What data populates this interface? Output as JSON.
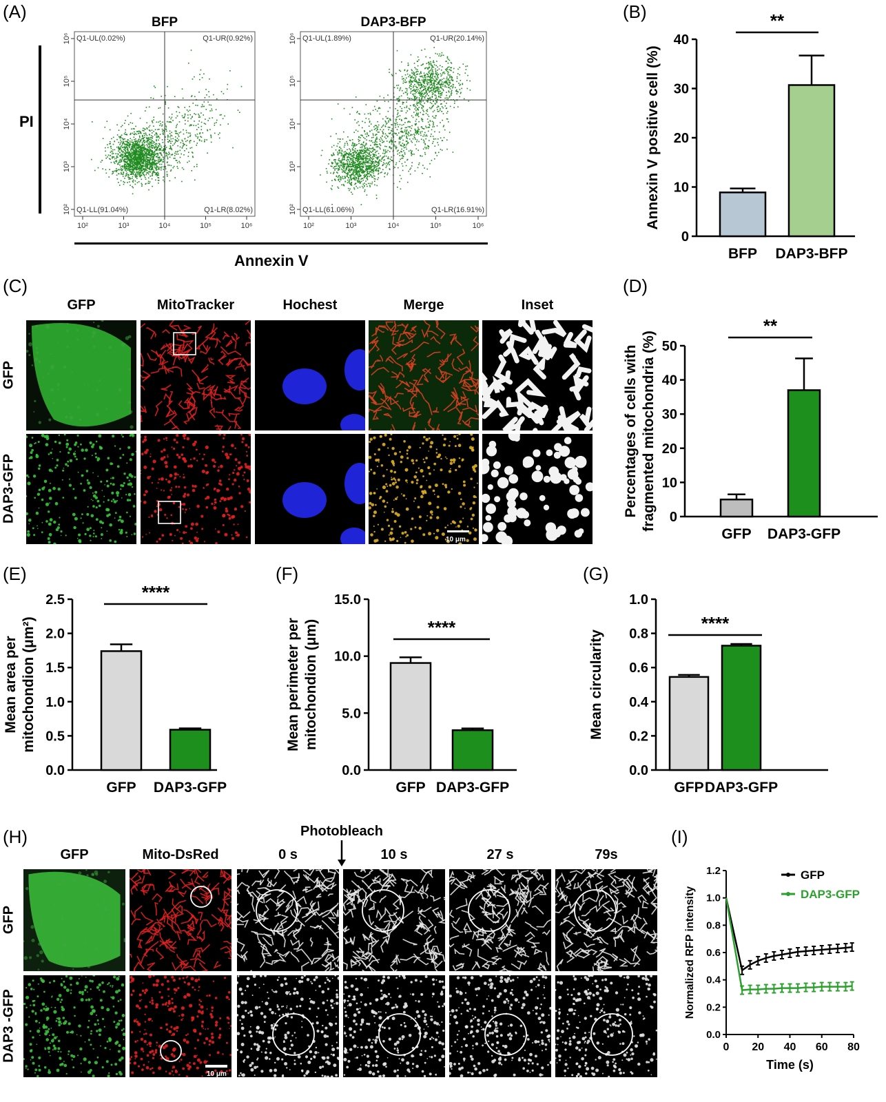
{
  "panel_labels": {
    "A": "(A)",
    "B": "(B)",
    "C": "(C)",
    "D": "(D)",
    "E": "(E)",
    "F": "(F)",
    "G": "(G)",
    "H": "(H)",
    "I": "(I)"
  },
  "flow": {
    "plots": [
      {
        "title": "BFP",
        "ul": "Q1-UL(0.02%)",
        "ur": "Q1-UR(0.92%)",
        "ll": "Q1-LL(91.04%)",
        "lr": "Q1-LR(8.02%)"
      },
      {
        "title": "DAP3-BFP",
        "ul": "Q1-UL(1.89%)",
        "ur": "Q1-UR(20.14%)",
        "ll": "Q1-LL(61.06%)",
        "lr": "Q1-LR(16.91%)"
      }
    ],
    "xlabel": "Annexin V",
    "ylabel": "PI",
    "xticks": [
      "10²",
      "10³",
      "10⁴",
      "10⁵",
      "10⁶"
    ],
    "yticks": [
      "10²",
      "10³",
      "10⁴",
      "10⁵",
      "10⁶"
    ],
    "dot_color": "#1e8a1e"
  },
  "panel_c": {
    "columns": [
      "GFP",
      "MitoTracker",
      "Hochest",
      "Merge",
      "Inset"
    ],
    "rows": [
      "GFP",
      "DAP3-GFP"
    ],
    "scale": "10 μm"
  },
  "panel_h": {
    "photobleach": "Photobleach",
    "columns": [
      "GFP",
      "Mito-DsRed",
      "0 s",
      "10 s",
      "27 s",
      "79s"
    ],
    "rows": [
      "GFP",
      "DAP3 -GFP"
    ],
    "scale": "10 μm"
  },
  "chart_data": [
    {
      "id": "B",
      "type": "bar",
      "categories": [
        "BFP",
        "DAP3-BFP"
      ],
      "values": [
        8.9,
        30.7
      ],
      "errors": [
        0.8,
        6.0
      ],
      "colors": [
        "#b8c7d4",
        "#a5cf8e"
      ],
      "ylabel": "Annexin V positive cell (%)",
      "ylim": [
        0,
        40
      ],
      "yticks": [
        "0",
        "10",
        "20",
        "30",
        "40"
      ],
      "significance": "**"
    },
    {
      "id": "D",
      "type": "bar",
      "categories": [
        "GFP",
        "DAP3-GFP"
      ],
      "values": [
        5.0,
        37.0
      ],
      "errors": [
        1.5,
        9.3
      ],
      "colors": [
        "#bdbdbd",
        "#1c8f1c"
      ],
      "ylabel": "Percentages of cells with fragmented mitochondria (%)",
      "ylabel_lines": [
        "Percentages of cells with",
        "fragmented mitochondria (%)"
      ],
      "ylim": [
        0,
        50
      ],
      "yticks": [
        "0",
        "10",
        "20",
        "30",
        "40",
        "50"
      ],
      "significance": "**"
    },
    {
      "id": "E",
      "type": "bar",
      "categories": [
        "GFP",
        "DAP3-GFP"
      ],
      "values": [
        1.74,
        0.59
      ],
      "errors": [
        0.1,
        0.02
      ],
      "colors": [
        "#d9d9d9",
        "#1c8f1c"
      ],
      "ylabel_lines": [
        "Mean area per",
        "mitochondion (μm²)"
      ],
      "ylim": [
        0,
        2.5
      ],
      "yticks": [
        "0.0",
        "0.5",
        "1.0",
        "1.5",
        "2.0",
        "2.5"
      ],
      "significance": "****"
    },
    {
      "id": "F",
      "type": "bar",
      "categories": [
        "GFP",
        "DAP3-GFP"
      ],
      "values": [
        9.4,
        3.5
      ],
      "errors": [
        0.5,
        0.15
      ],
      "colors": [
        "#d9d9d9",
        "#1c8f1c"
      ],
      "ylabel_lines": [
        "Mean perimeter per",
        "mitochondion (μm)"
      ],
      "ylim": [
        0,
        15
      ],
      "yticks": [
        "0.0",
        "5.0",
        "10.0",
        "15.0"
      ],
      "significance": "****"
    },
    {
      "id": "G",
      "type": "bar",
      "categories": [
        "GFP",
        "DAP3-GFP"
      ],
      "values": [
        0.545,
        0.728
      ],
      "errors": [
        0.012,
        0.01
      ],
      "colors": [
        "#d9d9d9",
        "#1c8f1c"
      ],
      "ylabel_lines": [
        "Mean circularity"
      ],
      "ylim": [
        0,
        1.0
      ],
      "yticks": [
        "0.0",
        "0.2",
        "0.4",
        "0.6",
        "0.8",
        "1.0"
      ],
      "significance": "****"
    },
    {
      "id": "I",
      "type": "line",
      "x": [
        0,
        10,
        15,
        20,
        25,
        30,
        35,
        40,
        45,
        50,
        55,
        60,
        65,
        70,
        75,
        79
      ],
      "series": [
        {
          "name": "GFP",
          "color": "#000000",
          "values": [
            1.0,
            0.47,
            0.51,
            0.54,
            0.56,
            0.575,
            0.585,
            0.595,
            0.605,
            0.61,
            0.615,
            0.62,
            0.625,
            0.63,
            0.635,
            0.64
          ]
        },
        {
          "name": "DAP3-GFP",
          "color": "#2ca02c",
          "values": [
            1.0,
            0.325,
            0.33,
            0.33,
            0.335,
            0.335,
            0.34,
            0.34,
            0.34,
            0.345,
            0.345,
            0.35,
            0.35,
            0.35,
            0.35,
            0.355
          ]
        }
      ],
      "xlabel": "Time (s)",
      "ylabel": "Normalized RFP intensity",
      "xlim": [
        0,
        80
      ],
      "ylim": [
        0,
        1.2
      ],
      "xticks": [
        "0",
        "20",
        "40",
        "60",
        "80"
      ],
      "yticks": [
        "0.0",
        "0.2",
        "0.4",
        "0.6",
        "0.8",
        "1.0",
        "1.2"
      ]
    }
  ]
}
